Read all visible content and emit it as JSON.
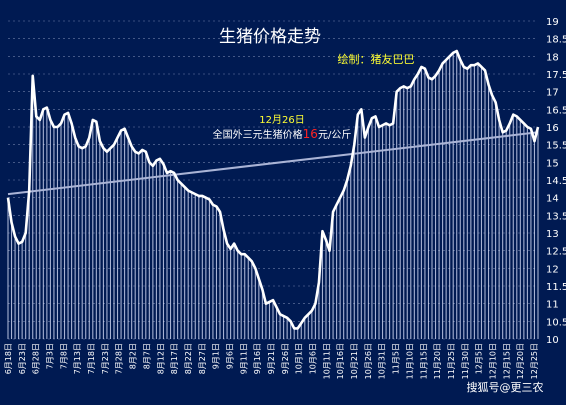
{
  "page": {
    "background": "#001a52",
    "title": "生猪价格走势",
    "credit": "绘制：猪友巴巴",
    "annotation_date": "12月26日",
    "annotation_prefix": "全国外三元生猪价格",
    "annotation_value": "16",
    "annotation_suffix": "元/公斤",
    "watermark": "搜狐号@更三农"
  },
  "colors": {
    "line": "#ffffff",
    "trend": "#aab4d6",
    "highlight": "#ffff33",
    "value_red": "#ff2222",
    "grid": "#c8d0ee"
  },
  "chart_data": {
    "type": "line",
    "title": "生猪价格走势",
    "xlabel": "",
    "ylabel": "",
    "ylim": [
      10,
      19
    ],
    "y_ticks": [
      10,
      10.5,
      11,
      11.5,
      12,
      12.5,
      13,
      13.5,
      14,
      14.5,
      15,
      15.5,
      16,
      16.5,
      17,
      17.5,
      18,
      18.5,
      19
    ],
    "x_ticks": [
      "6月18日",
      "6月23日",
      "6月28日",
      "7月3日",
      "7月8日",
      "7月13日",
      "7月18日",
      "7月23日",
      "7月28日",
      "8月2日",
      "8月7日",
      "8月12日",
      "8月17日",
      "8月22日",
      "8月27日",
      "9月1日",
      "9月6日",
      "9月11日",
      "9月16日",
      "9月21日",
      "9月26日",
      "10月1日",
      "10月6日",
      "10月11日",
      "10月16日",
      "10月21日",
      "10月26日",
      "10月31日",
      "11月5日",
      "11月10日",
      "11月15日",
      "11月20日",
      "11月25日",
      "11月30日",
      "12月5日",
      "12月10日",
      "12月15日",
      "12月20日",
      "12月25日"
    ],
    "x_start": "6月18日",
    "x_end": "12月26日",
    "series": [
      {
        "values": [
          14.0,
          13.3,
          12.9,
          12.7,
          12.75,
          13.0,
          14.2,
          17.45,
          16.3,
          16.2,
          16.5,
          16.55,
          16.2,
          16.0,
          16.0,
          16.1,
          16.35,
          16.4,
          16.1,
          15.7,
          15.45,
          15.4,
          15.45,
          15.7,
          16.2,
          16.15,
          15.6,
          15.4,
          15.3,
          15.4,
          15.5,
          15.7,
          15.9,
          15.95,
          15.7,
          15.45,
          15.3,
          15.25,
          15.35,
          15.3,
          15.0,
          14.9,
          15.05,
          15.1,
          14.95,
          14.7,
          14.75,
          14.7,
          14.5,
          14.4,
          14.3,
          14.2,
          14.15,
          14.1,
          14.05,
          14.05,
          14.0,
          13.95,
          13.8,
          13.75,
          13.6,
          13.1,
          12.7,
          12.55,
          12.7,
          12.5,
          12.4,
          12.4,
          12.3,
          12.2,
          12.0,
          11.7,
          11.4,
          11.0,
          11.05,
          11.1,
          10.9,
          10.7,
          10.65,
          10.6,
          10.5,
          10.3,
          10.3,
          10.45,
          10.6,
          10.7,
          10.8,
          11.0,
          11.6,
          13.05,
          12.8,
          12.5,
          13.6,
          13.8,
          14.0,
          14.2,
          14.5,
          14.9,
          15.5,
          16.35,
          16.5,
          15.7,
          16.0,
          16.25,
          16.3,
          16.0,
          16.05,
          16.1,
          16.05,
          16.1,
          17.0,
          17.1,
          17.15,
          17.1,
          17.15,
          17.35,
          17.5,
          17.7,
          17.65,
          17.4,
          17.35,
          17.45,
          17.6,
          17.8,
          17.9,
          18.0,
          18.1,
          18.15,
          17.9,
          17.7,
          17.65,
          17.75,
          17.75,
          17.8,
          17.7,
          17.6,
          17.2,
          16.9,
          16.7,
          16.2,
          15.85,
          15.9,
          16.1,
          16.35,
          16.3,
          16.2,
          16.1,
          16.0,
          15.95,
          15.6,
          16.0
        ]
      },
      {
        "name": "trend",
        "values_endpoints": [
          14.1,
          15.85
        ]
      }
    ]
  }
}
